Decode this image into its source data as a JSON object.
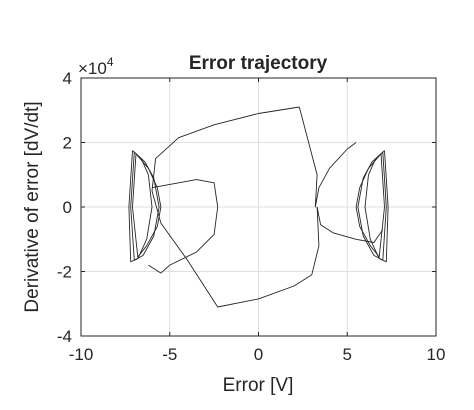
{
  "chart_data": {
    "type": "line",
    "title": "Error trajectory",
    "xlabel": "Error [V]",
    "ylabel": "Derivative of error [dV/dt]",
    "y_exponent_label": "×10",
    "y_exponent_power": "4",
    "xlim": [
      -10,
      10
    ],
    "ylim": [
      -40000,
      40000
    ],
    "x_ticks": [
      -10,
      -5,
      0,
      5,
      10
    ],
    "x_tick_labels": [
      "-10",
      "-5",
      "0",
      "5",
      "10"
    ],
    "y_ticks": [
      -40000,
      -20000,
      0,
      20000,
      40000
    ],
    "y_tick_labels": [
      "-4",
      "-2",
      "0",
      "2",
      "4"
    ],
    "grid": true,
    "line_color": "#262626",
    "series": [
      {
        "note_shape": "outer transfer",
        "x": [
          2.3,
          0.0,
          -2.5,
          -4.5,
          -5.8,
          -6.0,
          -5.5,
          -4.0,
          -2.3,
          0.0,
          2.0,
          3.0,
          3.4,
          3.3
        ],
        "y": [
          31000,
          29000,
          25500,
          21500,
          15000,
          5000,
          -5000,
          -16500,
          -31000,
          -28500,
          -24500,
          -21000,
          -12000,
          0
        ]
      },
      {
        "note_shape": "right approach",
        "x": [
          3.3,
          3.5,
          4.2,
          5.5,
          6.5,
          7.0
        ],
        "y": [
          0,
          -5500,
          -8000,
          -10000,
          -11000,
          -7000
        ]
      },
      {
        "note_shape": "left approach",
        "x": [
          -2.3,
          -2.5,
          -3.5,
          -5.0,
          -6.0
        ],
        "y": [
          0,
          7500,
          8500,
          7000,
          6000
        ]
      },
      {
        "note_shape": "inner transfer right",
        "x": [
          2.3,
          3.3,
          3.2,
          3.4,
          4.0,
          5.0,
          5.5
        ],
        "y": [
          31000,
          10000,
          0,
          6000,
          12000,
          18000,
          20000
        ]
      },
      {
        "note_shape": "inner transfer left",
        "x": [
          -2.3,
          -2.5,
          -3.5,
          -5.0,
          -5.5,
          -6.2
        ],
        "y": [
          0,
          -8500,
          -14000,
          -18000,
          -20500,
          -18000
        ]
      },
      {
        "note_shape": "left limit cycle",
        "x": [
          -7.0,
          -6.4,
          -5.9,
          -5.6,
          -5.9,
          -6.5,
          -7.0,
          -7.2,
          -7.0
        ],
        "y": [
          17000,
          14000,
          9000,
          0,
          -9000,
          -15000,
          -16500,
          0,
          17000
        ]
      },
      {
        "note_shape": "left limit cycle",
        "x": [
          -6.9,
          -6.2,
          -5.7,
          -5.5,
          -5.7,
          -6.3,
          -6.8,
          -7.1,
          -6.9
        ],
        "y": [
          16500,
          12000,
          6000,
          0,
          -6000,
          -12000,
          -15500,
          0,
          16500
        ]
      },
      {
        "note_shape": "left limit cycle",
        "x": [
          -7.1,
          -6.6,
          -6.2,
          -6.0,
          -6.3,
          -6.8,
          -7.2,
          -7.3,
          -7.1
        ],
        "y": [
          17500,
          15000,
          10000,
          0,
          -10000,
          -16000,
          -17000,
          0,
          17500
        ]
      },
      {
        "note_shape": "right limit cycle",
        "x": [
          7.0,
          6.4,
          5.9,
          5.6,
          5.9,
          6.5,
          7.0,
          7.2,
          7.0
        ],
        "y": [
          17000,
          14000,
          9000,
          0,
          -9000,
          -15000,
          -16500,
          0,
          17000
        ]
      },
      {
        "note_shape": "right limit cycle",
        "x": [
          6.9,
          6.2,
          5.7,
          5.5,
          5.7,
          6.3,
          6.8,
          7.1,
          6.9
        ],
        "y": [
          16500,
          12000,
          6000,
          0,
          -6000,
          -12000,
          -15500,
          0,
          16500
        ]
      },
      {
        "note_shape": "right limit cycle",
        "x": [
          7.1,
          6.6,
          6.2,
          6.0,
          6.3,
          6.8,
          7.2,
          7.3,
          7.1
        ],
        "y": [
          17500,
          15000,
          10000,
          0,
          -10000,
          -16000,
          -17000,
          0,
          17500
        ]
      }
    ]
  }
}
